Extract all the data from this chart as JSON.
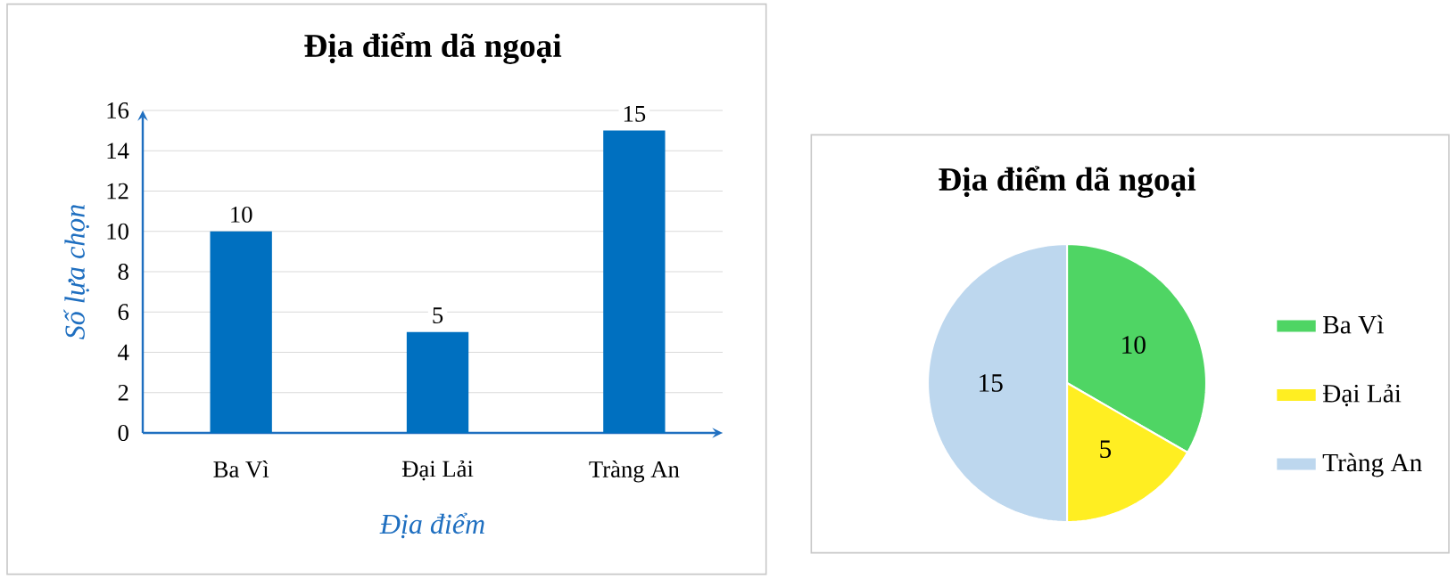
{
  "chart_data": [
    {
      "type": "bar",
      "title": "Địa điểm dã ngoại",
      "xlabel": "Địa điểm",
      "ylabel": "Số lựa chọn",
      "categories": [
        "Ba Vì",
        "Đại Lải",
        "Tràng An"
      ],
      "values": [
        10,
        5,
        15
      ],
      "color": "#0070c0",
      "ylim": [
        0,
        16
      ],
      "yticks": [
        0,
        2,
        4,
        6,
        8,
        10,
        12,
        14,
        16
      ],
      "grid": "y",
      "data_labels": true
    },
    {
      "type": "pie",
      "title": "Địa điểm dã ngoại",
      "categories": [
        "Ba Vì",
        "Đại Lải",
        "Tràng An"
      ],
      "values": [
        10,
        5,
        15
      ],
      "colors": [
        "#4fd564",
        "#ffee22",
        "#bdd7ee"
      ],
      "data_labels": true,
      "legend": "right"
    }
  ]
}
